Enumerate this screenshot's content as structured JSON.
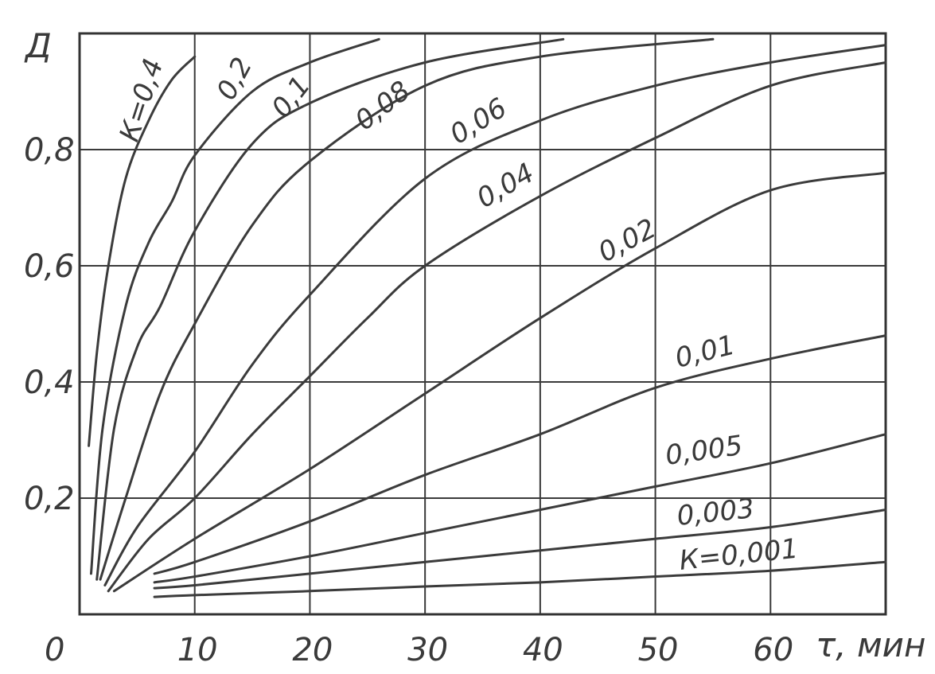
{
  "chart_data": {
    "type": "line",
    "xlabel": "τ, мин",
    "ylabel": "Д",
    "xlim": [
      0,
      70
    ],
    "ylim": [
      0,
      1.0
    ],
    "grid": true,
    "x_ticks": [
      "0",
      "10",
      "20",
      "30",
      "40",
      "50",
      "60"
    ],
    "y_ticks": [
      "0,2",
      "0,4",
      "0,6",
      "0,8"
    ],
    "series": [
      {
        "name": "К=0,4",
        "label": "К=0,4",
        "x": [
          0.8,
          1.5,
          2.5,
          4,
          6,
          8,
          10
        ],
        "values": [
          0.29,
          0.45,
          0.6,
          0.75,
          0.85,
          0.92,
          0.96
        ]
      },
      {
        "name": "0,2",
        "label": "0,2",
        "x": [
          1,
          2,
          4,
          6,
          8,
          10,
          15,
          20,
          26
        ],
        "values": [
          0.07,
          0.32,
          0.53,
          0.64,
          0.71,
          0.79,
          0.9,
          0.95,
          0.99
        ]
      },
      {
        "name": "0,1",
        "label": "0,1",
        "x": [
          1.5,
          3,
          5,
          7,
          10,
          15,
          20,
          30,
          42
        ],
        "values": [
          0.06,
          0.32,
          0.46,
          0.53,
          0.66,
          0.81,
          0.88,
          0.95,
          0.99
        ]
      },
      {
        "name": "0,08",
        "label": "0,08",
        "x": [
          1.8,
          4,
          7,
          10,
          15,
          20,
          30,
          40,
          55
        ],
        "values": [
          0.06,
          0.2,
          0.38,
          0.5,
          0.67,
          0.78,
          0.91,
          0.96,
          0.99
        ]
      },
      {
        "name": "0,06",
        "label": "0,06",
        "x": [
          2.2,
          5,
          10,
          15,
          20,
          30,
          40,
          50,
          60,
          70
        ],
        "values": [
          0.05,
          0.15,
          0.28,
          0.43,
          0.55,
          0.75,
          0.85,
          0.91,
          0.95,
          0.98
        ]
      },
      {
        "name": "0,04",
        "label": "0,04",
        "x": [
          2.5,
          6,
          10,
          15,
          20,
          25,
          30,
          40,
          50,
          60,
          70
        ],
        "values": [
          0.04,
          0.13,
          0.2,
          0.31,
          0.41,
          0.51,
          0.6,
          0.72,
          0.82,
          0.91,
          0.95
        ]
      },
      {
        "name": "0,02",
        "label": "0,02",
        "x": [
          3,
          10,
          20,
          30,
          40,
          50,
          60,
          70
        ],
        "values": [
          0.04,
          0.13,
          0.25,
          0.38,
          0.51,
          0.63,
          0.73,
          0.76
        ]
      },
      {
        "name": "0,01",
        "label": "0,01",
        "x": [
          6.5,
          10,
          20,
          30,
          40,
          50,
          60,
          70
        ],
        "values": [
          0.07,
          0.09,
          0.16,
          0.24,
          0.31,
          0.39,
          0.44,
          0.48
        ]
      },
      {
        "name": "0,005",
        "label": "0,005",
        "x": [
          6.5,
          10,
          20,
          30,
          40,
          50,
          60,
          70
        ],
        "values": [
          0.055,
          0.065,
          0.1,
          0.14,
          0.18,
          0.22,
          0.26,
          0.31
        ]
      },
      {
        "name": "0,003",
        "label": "0,003",
        "x": [
          6.5,
          10,
          20,
          30,
          40,
          50,
          60,
          70
        ],
        "values": [
          0.045,
          0.05,
          0.07,
          0.09,
          0.11,
          0.13,
          0.15,
          0.18
        ]
      },
      {
        "name": "К=0,001",
        "label": "К=0,001",
        "x": [
          6.5,
          10,
          20,
          30,
          40,
          50,
          60,
          70
        ],
        "values": [
          0.03,
          0.033,
          0.04,
          0.048,
          0.055,
          0.065,
          0.075,
          0.09
        ]
      }
    ]
  }
}
